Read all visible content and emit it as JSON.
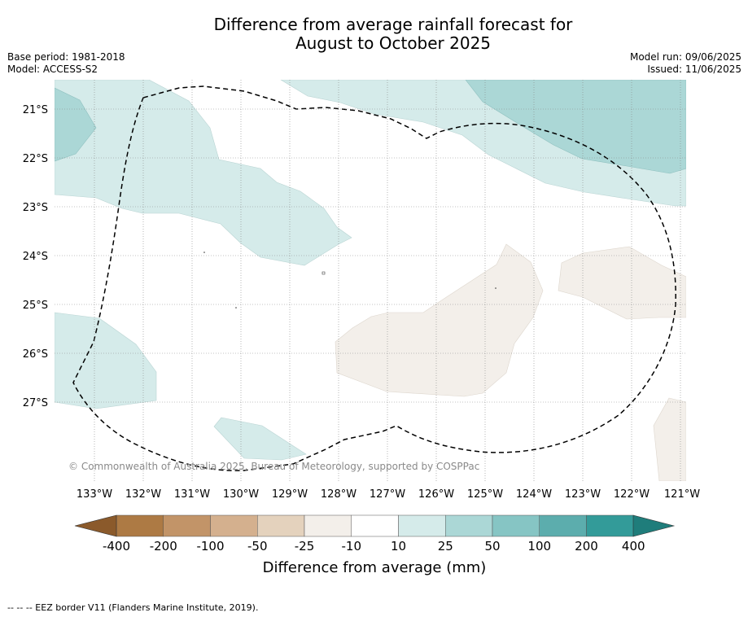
{
  "title": {
    "line1": "Difference from average rainfall forecast for",
    "line2": "August to October 2025"
  },
  "meta": {
    "base_period": "Base period: 1981-2018",
    "model": "Model: ACCESS-S2",
    "model_run": "Model run: 09/06/2025",
    "issued": "Issued: 11/06/2025"
  },
  "map": {
    "lon_labels": [
      "133°W",
      "132°W",
      "131°W",
      "130°W",
      "129°W",
      "128°W",
      "127°W",
      "126°W",
      "125°W",
      "124°W",
      "123°W",
      "122°W",
      "121°W"
    ],
    "lat_labels": [
      "21°S",
      "22°S",
      "23°S",
      "24°S",
      "25°S",
      "26°S",
      "27°S"
    ],
    "copyright": "© Commonwealth of Australia 2025, Bureau of Meteorology, supported by COSPPac"
  },
  "colorbar": {
    "ticks": [
      "-400",
      "-200",
      "-100",
      "-50",
      "-25",
      "-10",
      "10",
      "25",
      "50",
      "100",
      "200",
      "400"
    ],
    "colors": [
      "#ad7a44",
      "#c29468",
      "#d4b08e",
      "#e4d2bd",
      "#f3efea",
      "#ffffff",
      "#d5ebea",
      "#abd7d6",
      "#86c5c4",
      "#5cadad",
      "#339b99"
    ],
    "under_color": "#8b5a2b",
    "over_color": "#1f7d7b",
    "label": "Difference from average (mm)"
  },
  "legend": {
    "eez": "-- -- -- EEZ border V11 (Flanders Marine Institute, 2019)."
  }
}
